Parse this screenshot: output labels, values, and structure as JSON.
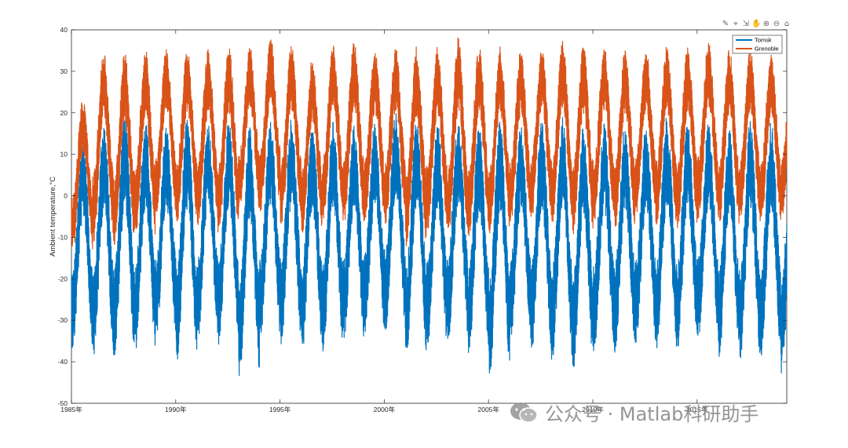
{
  "chart_data": {
    "type": "line",
    "xlabel": "",
    "ylabel": "Ambient temperature,°C",
    "ylim": [
      -50,
      40
    ],
    "xlim": [
      1985,
      2019.3
    ],
    "y_ticks": [
      -50,
      -40,
      -30,
      -20,
      -10,
      0,
      10,
      20,
      30,
      40
    ],
    "x_ticks": [
      {
        "value": 1985,
        "label": "1985年"
      },
      {
        "value": 1990,
        "label": "1990年"
      },
      {
        "value": 1995,
        "label": "1995年"
      },
      {
        "value": 2000,
        "label": "2000年"
      },
      {
        "value": 2005,
        "label": "2005年"
      },
      {
        "value": 2010,
        "label": "2010年"
      },
      {
        "value": 2015,
        "label": "2015年"
      }
    ],
    "grid": false,
    "legend_position": "top-right",
    "series": [
      {
        "name": "Tomsk",
        "color": "#0072BD",
        "annual_summer_max": [
          14,
          18,
          20,
          18,
          17,
          19,
          18,
          18,
          17,
          18,
          19,
          17,
          18,
          17,
          18,
          20,
          19,
          18,
          18,
          17,
          18,
          17,
          18,
          19,
          17,
          18,
          18,
          17,
          19,
          18,
          18,
          17,
          18,
          18,
          16
        ],
        "annual_winter_min": [
          -37,
          -39,
          -39,
          -38,
          -35,
          -40,
          -35,
          -36,
          -44,
          -35,
          -36,
          -38,
          -38,
          -35,
          -34,
          -33,
          -39,
          -37,
          -35,
          -38,
          -43,
          -35,
          -38,
          -40,
          -42,
          -38,
          -38,
          -36,
          -37,
          -37,
          -35,
          -39,
          -40,
          -40,
          -43
        ]
      },
      {
        "name": "Grenoble",
        "color": "#D95319",
        "annual_summer_max": [
          24,
          36,
          36,
          36,
          36,
          36,
          36,
          37,
          37,
          39,
          37,
          34,
          37,
          38,
          36,
          37,
          37,
          37,
          39,
          37,
          37,
          36,
          37,
          38,
          37,
          37,
          36,
          36,
          37,
          37,
          38,
          36,
          36,
          35,
          34
        ],
        "annual_winter_min": [
          -14,
          -12,
          -13,
          -11,
          -6,
          -7,
          -8,
          -10,
          -5,
          -5,
          -8,
          -10,
          -7,
          -8,
          -8,
          -8,
          -13,
          -10,
          -12,
          -11,
          -10,
          -8,
          -7,
          -8,
          -10,
          -8,
          -9,
          -6,
          -8,
          -9,
          -7,
          -8,
          -7,
          -8,
          -6
        ]
      }
    ]
  },
  "toolbar": {
    "icons": [
      "brush-icon",
      "data-tips-icon",
      "export-icon",
      "pan-icon",
      "zoom-in-icon",
      "zoom-out-icon",
      "home-icon"
    ],
    "glyphs": [
      "✎",
      "⌖",
      "⇲",
      "✋",
      "⊕",
      "⊖",
      "⌂"
    ]
  },
  "watermark": {
    "text": "公众号 · Matlab科研助手"
  }
}
